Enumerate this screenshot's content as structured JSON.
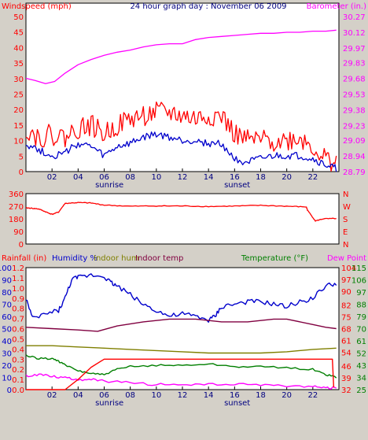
{
  "colors": {
    "background": "#d4d0c8",
    "plot_bg": "#ffffff",
    "red": "#ff0000",
    "blue": "#0000cc",
    "magenta": "#ff00ff",
    "green": "#007f00",
    "olive": "#7f7f00",
    "maroon": "#800040",
    "navy": "#000080"
  },
  "chart_data": [
    {
      "type": "line",
      "title": "24 hour graph day : November 06 2009",
      "left_label": "Windspeed (mph)",
      "right_label": "Barometer (in.)",
      "xlim": [
        0,
        24
      ],
      "x_ticks": [
        "02",
        "04",
        "06",
        "08",
        "10",
        "12",
        "14",
        "16",
        "18",
        "20",
        "22"
      ],
      "x_markers": [
        "sunrise",
        "sunset"
      ],
      "y_left": {
        "ylim": [
          0,
          50
        ],
        "ticks": [
          "0",
          "5",
          "10",
          "15",
          "20",
          "25",
          "30",
          "35",
          "40",
          "45",
          "50"
        ]
      },
      "y_right": {
        "ylim": [
          28.79,
          30.27
        ],
        "ticks": [
          "28.79",
          "28.94",
          "29.09",
          "29.23",
          "29.38",
          "29.53",
          "29.68",
          "29.83",
          "29.97",
          "30.12",
          "30.27"
        ]
      },
      "series": [
        {
          "axis": "right",
          "color": "magenta",
          "x": [
            0,
            0.7,
            1.5,
            2.2,
            3,
            4,
            5,
            6,
            7,
            8,
            9,
            10,
            11,
            12,
            13,
            14,
            15,
            16,
            17,
            18,
            19,
            20,
            21,
            22,
            23,
            23.8
          ],
          "y": [
            29.68,
            29.66,
            29.63,
            29.65,
            29.73,
            29.81,
            29.86,
            29.9,
            29.93,
            29.95,
            29.98,
            30.0,
            30.01,
            30.01,
            30.05,
            30.07,
            30.08,
            30.09,
            30.1,
            30.11,
            30.11,
            30.12,
            30.12,
            30.13,
            30.13,
            30.14
          ]
        },
        {
          "axis": "left",
          "color": "red",
          "x": [
            0,
            1,
            2,
            3,
            4,
            5,
            6,
            7,
            8,
            9,
            10,
            11,
            12,
            13,
            14,
            15,
            16,
            17,
            18,
            19,
            20,
            21,
            22,
            23,
            23.8
          ],
          "y": [
            14,
            11,
            12,
            11,
            14,
            15,
            12,
            15,
            17,
            18,
            19,
            19,
            18,
            17,
            18,
            18,
            12,
            10,
            10,
            10,
            10,
            11,
            8,
            4,
            3
          ]
        },
        {
          "axis": "left",
          "color": "blue",
          "x": [
            0,
            1,
            2,
            3,
            4,
            5,
            6,
            7,
            8,
            9,
            10,
            11,
            12,
            13,
            14,
            15,
            16,
            17,
            18,
            19,
            20,
            21,
            22,
            23,
            23.8
          ],
          "y": [
            9,
            7,
            5,
            6,
            9,
            8,
            5,
            8,
            9,
            11,
            12,
            11,
            10,
            10,
            9,
            9,
            4,
            3,
            4,
            5,
            5,
            5,
            4,
            2,
            1
          ]
        }
      ]
    },
    {
      "type": "line",
      "xlim": [
        0,
        24
      ],
      "y_left": {
        "ylim": [
          0,
          360
        ],
        "ticks": [
          "0",
          "90",
          "180",
          "270",
          "360"
        ]
      },
      "y_right": {
        "ticks": [
          "N",
          "E",
          "S",
          "W",
          "N"
        ]
      },
      "series": [
        {
          "axis": "left",
          "color": "red",
          "x": [
            0,
            0.5,
            1,
            1.5,
            2,
            2.5,
            3,
            4,
            5,
            6,
            8,
            10,
            12,
            14,
            16,
            18,
            20,
            21.5,
            21.6,
            22.2,
            22.8,
            23.8
          ],
          "y": [
            258,
            255,
            250,
            230,
            212,
            228,
            290,
            296,
            293,
            278,
            270,
            272,
            272,
            268,
            271,
            276,
            270,
            265,
            240,
            165,
            180,
            182
          ]
        }
      ]
    },
    {
      "type": "line",
      "left_labels": [
        "Rainfall (in)",
        "Humidity %",
        "Indoor hum",
        "Indoor temp"
      ],
      "right_labels": [
        "Temperature (°F)",
        "Dew Point"
      ],
      "xlim": [
        0,
        24
      ],
      "x_ticks": [
        "02",
        "04",
        "06",
        "08",
        "10",
        "12",
        "14",
        "16",
        "18",
        "20",
        "22"
      ],
      "x_markers": [
        "sunrise",
        "sunset"
      ],
      "y_rain": {
        "ylim": [
          0,
          1.2
        ],
        "ticks": [
          "0.0",
          "0.1",
          "0.2",
          "0.3",
          "0.4",
          "0.5",
          "0.6",
          "0.7",
          "0.8",
          "0.9",
          "1.0",
          "1.1",
          "1.2"
        ]
      },
      "y_hum": {
        "ylim": [
          0,
          100
        ],
        "ticks": [
          "0",
          "10",
          "20",
          "30",
          "40",
          "50",
          "60",
          "70",
          "80",
          "90",
          "100"
        ]
      },
      "y_temp1": {
        "ylim": [
          25,
          115
        ],
        "ticks": [
          "25",
          "34",
          "43",
          "52",
          "61",
          "70",
          "79",
          "88",
          "97",
          "106",
          "115"
        ]
      },
      "y_temp2": {
        "ylim": [
          32,
          104
        ],
        "ticks": [
          "32",
          "39",
          "46",
          "54",
          "61",
          "68",
          "75",
          "82",
          "90",
          "97",
          "104"
        ]
      },
      "series": [
        {
          "name": "Humidity %",
          "axis": "hum",
          "color": "blue",
          "x": [
            0,
            0.5,
            1.5,
            2.5,
            3,
            3.5,
            4,
            5,
            6,
            6.5,
            7,
            8,
            9,
            10,
            11,
            12,
            13,
            14,
            14.5,
            15,
            16,
            17,
            18,
            19,
            20,
            21,
            22,
            23,
            23.8
          ],
          "y": [
            75,
            58,
            62,
            65,
            75,
            90,
            92,
            94,
            93,
            88,
            85,
            78,
            70,
            65,
            60,
            62,
            60,
            57,
            60,
            68,
            70,
            72,
            72,
            70,
            68,
            72,
            75,
            85,
            87
          ]
        },
        {
          "name": "Indoor temp",
          "axis": "temp1",
          "color": "maroon",
          "x": [
            0,
            2,
            4,
            5.5,
            7,
            9,
            11,
            13,
            15,
            17,
            19,
            20,
            22,
            23,
            23.8
          ],
          "y": [
            71,
            70,
            69,
            68,
            72,
            75,
            77,
            77,
            75,
            75,
            77,
            77,
            73,
            71,
            70
          ]
        },
        {
          "name": "Indoor hum",
          "axis": "hum",
          "color": "olive",
          "x": [
            0,
            2,
            4,
            6,
            8,
            10,
            12,
            14,
            16,
            18,
            20,
            22,
            23.8
          ],
          "y": [
            36,
            36,
            35,
            34,
            33,
            32,
            31,
            30,
            30,
            30,
            31,
            33,
            34
          ]
        },
        {
          "name": "Temperature (°F)",
          "axis": "temp1",
          "color": "green",
          "x": [
            0,
            1,
            2,
            2.5,
            3,
            4,
            5,
            6,
            7,
            8,
            10,
            12,
            14,
            16,
            18,
            20,
            22,
            23,
            23.8
          ],
          "y": [
            50,
            48,
            48,
            46,
            43,
            39,
            37,
            36,
            40,
            42,
            43,
            43,
            44,
            42,
            42,
            41,
            40,
            36,
            34
          ]
        },
        {
          "name": "Dew Point",
          "axis": "temp2",
          "color": "magenta",
          "x": [
            0,
            1,
            2,
            3,
            4,
            5,
            6,
            8,
            10,
            12,
            14,
            16,
            18,
            20,
            22,
            23,
            23.8
          ],
          "y": [
            40,
            41,
            40,
            39,
            38,
            38,
            37,
            36,
            35,
            35,
            35,
            35,
            35,
            34,
            34,
            33,
            33
          ]
        },
        {
          "name": "Rainfall (in)",
          "axis": "rain",
          "color": "red",
          "x": [
            0,
            3,
            4,
            5,
            6,
            7,
            10,
            15,
            20,
            23.5,
            23.6
          ],
          "y": [
            0,
            0,
            0.1,
            0.22,
            0.3,
            0.3,
            0.3,
            0.3,
            0.3,
            0.3,
            0.02
          ]
        }
      ]
    }
  ]
}
